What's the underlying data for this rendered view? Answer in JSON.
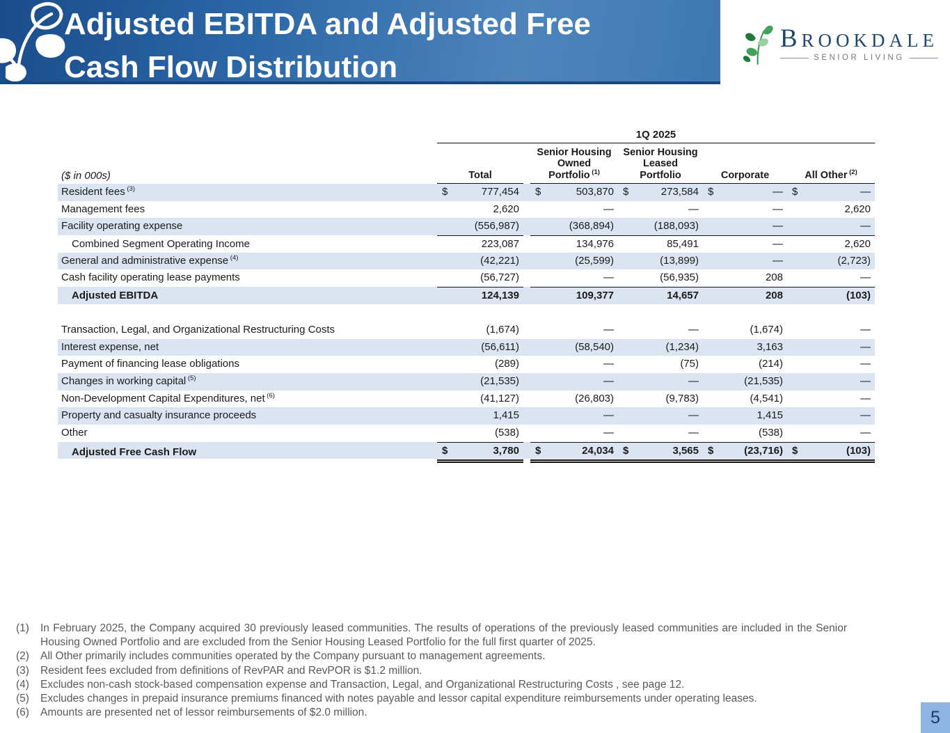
{
  "header": {
    "title_line1": "Adjusted EBITDA and Adjusted Free",
    "title_line2": "Cash Flow Distribution",
    "logo": {
      "brand": "BROOKDALE",
      "tagline": "SENIOR LIVING"
    }
  },
  "colors": {
    "banner_dark": "#1a4c8b",
    "banner_light": "#4e84bb",
    "row_shade": "#dbe5f1",
    "page_box": "#8db4e2",
    "brand_navy": "#1d4671",
    "leaf_green_dark": "#1f7a37",
    "leaf_green_mid": "#44a15c",
    "leaf_green_light": "#9bcf9e"
  },
  "table": {
    "units_label": "($ in 000s)",
    "period_header": "1Q 2025",
    "columns": [
      {
        "lines": [
          "Total"
        ],
        "sup": ""
      },
      {
        "lines": [
          "Senior Housing",
          "Owned",
          "Portfolio"
        ],
        "sup": "(1)"
      },
      {
        "lines": [
          "Senior Housing",
          "Leased",
          "Portfolio"
        ],
        "sup": ""
      },
      {
        "lines": [
          "Corporate"
        ],
        "sup": ""
      },
      {
        "lines": [
          "All Other"
        ],
        "sup": "(2)"
      }
    ],
    "sections": [
      {
        "rows": [
          {
            "label": "Resident fees",
            "sup": "(3)",
            "shaded": true,
            "dollars": true,
            "values": [
              "777,454",
              "503,870",
              "273,584",
              "—",
              "—"
            ]
          },
          {
            "label": "Management fees",
            "values": [
              "2,620",
              "—",
              "—",
              "—",
              "2,620"
            ]
          },
          {
            "label": "Facility operating expense",
            "shaded": true,
            "values": [
              "(556,987)",
              "(368,894)",
              "(188,093)",
              "—",
              "—"
            ]
          },
          {
            "label": "Combined Segment Operating Income",
            "indent": true,
            "rule_top": true,
            "values": [
              "223,087",
              "134,976",
              "85,491",
              "—",
              "2,620"
            ]
          },
          {
            "label": "General and administrative expense",
            "sup": "(4)",
            "shaded": true,
            "values": [
              "(42,221)",
              "(25,599)",
              "(13,899)",
              "—",
              "(2,723)"
            ]
          },
          {
            "label": "Cash facility operating lease payments",
            "values": [
              "(56,727)",
              "—",
              "(56,935)",
              "208",
              "—"
            ]
          },
          {
            "label": "Adjusted EBITDA",
            "indent": true,
            "bold": true,
            "shaded": true,
            "rule_top": true,
            "values": [
              "124,139",
              "109,377",
              "14,657",
              "208",
              "(103)"
            ]
          }
        ]
      },
      {
        "rows": [
          {
            "label": "Transaction, Legal, and Organizational Restructuring Costs",
            "values": [
              "(1,674)",
              "—",
              "—",
              "(1,674)",
              "—"
            ]
          },
          {
            "label": "Interest expense, net",
            "shaded": true,
            "values": [
              "(56,611)",
              "(58,540)",
              "(1,234)",
              "3,163",
              "—"
            ]
          },
          {
            "label": "Payment of financing lease obligations",
            "values": [
              "(289)",
              "—",
              "(75)",
              "(214)",
              "—"
            ]
          },
          {
            "label": "Changes in working capital",
            "sup": "(5)",
            "shaded": true,
            "values": [
              "(21,535)",
              "—",
              "—",
              "(21,535)",
              "—"
            ]
          },
          {
            "label": "Non-Development Capital Expenditures, net",
            "sup": "(6)",
            "values": [
              "(41,127)",
              "(26,803)",
              "(9,783)",
              "(4,541)",
              "—"
            ]
          },
          {
            "label": "Property and casualty insurance proceeds",
            "shaded": true,
            "values": [
              "1,415",
              "—",
              "—",
              "1,415",
              "—"
            ]
          },
          {
            "label": "Other",
            "values": [
              "(538)",
              "—",
              "—",
              "(538)",
              "—"
            ]
          },
          {
            "label": "Adjusted Free Cash Flow",
            "indent": true,
            "bold": true,
            "shaded": true,
            "dollars": true,
            "rule_top": true,
            "rule_double": true,
            "values": [
              "3,780",
              "24,034",
              "3,565",
              "(23,716)",
              "(103)"
            ]
          }
        ]
      }
    ]
  },
  "footnotes": [
    {
      "num": "(1)",
      "justify": true,
      "text": "In February 2025, the Company acquired 30 previously leased communities. The results of operations of the previously leased communities are included in the Senior Housing Owned Portfolio and are excluded from the Senior Housing Leased Portfolio for the full first quarter of 2025."
    },
    {
      "num": "(2)",
      "text": "All Other primarily includes communities operated by the Company pursuant to management agreements."
    },
    {
      "num": "(3)",
      "text": "Resident fees excluded from definitions of RevPAR and RevPOR is $1.2 million."
    },
    {
      "num": "(4)",
      "text": "Excludes non-cash stock-based compensation expense and Transaction, Legal, and Organizational Restructuring Costs , see page 12."
    },
    {
      "num": "(5)",
      "text": "Excludes changes in prepaid insurance premiums financed with notes payable and lessor capital expenditure reimbursements under operating leases."
    },
    {
      "num": "(6)",
      "text": "Amounts are presented net of lessor reimbursements of $2.0 million."
    }
  ],
  "page_number": "5"
}
